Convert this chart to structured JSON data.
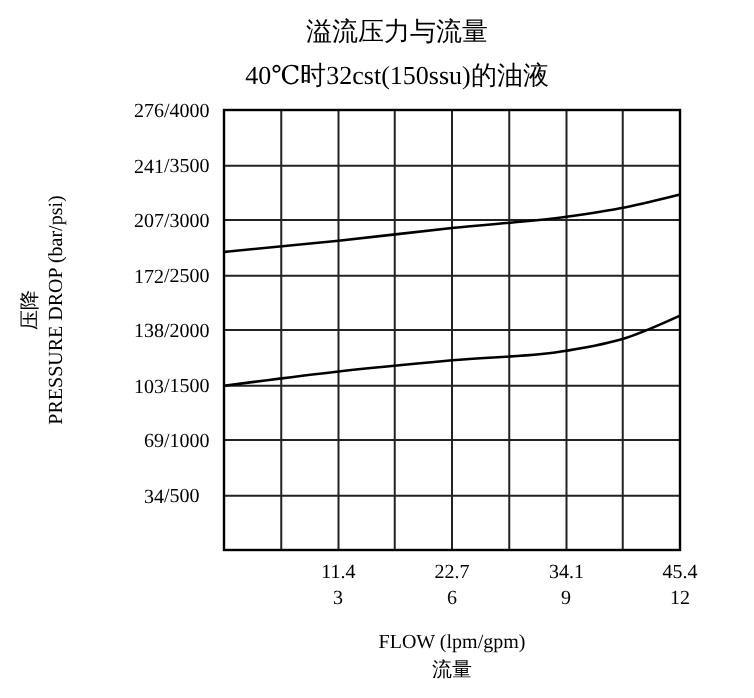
{
  "chart_data": {
    "type": "line",
    "title": "溢流压力与流量",
    "subtitle": "40℃时32cst(150ssu)的油液",
    "xlabel": "FLOW (lpm/gpm)\n流量",
    "ylabel": "压降\nPRESSURE DROP (bar/psi)",
    "xlim": [
      0,
      45.4
    ],
    "ylim": [
      0,
      276
    ],
    "x2lim": [
      0,
      12
    ],
    "y2lim": [
      0,
      4000
    ],
    "xticks": [
      {
        "value": 5.7,
        "label": null
      },
      11.4,
      {
        "value": 17.0,
        "label": null
      },
      22.7,
      {
        "value": 28.4,
        "label": null
      },
      34.1,
      {
        "value": 39.7,
        "label": null
      },
      45.4
    ],
    "x2ticks": [
      3,
      6,
      9,
      12
    ],
    "yticks": [
      34,
      69,
      103,
      138,
      172,
      207,
      241,
      276
    ],
    "y2ticks": [
      {
        "value": 500,
        "label": "/500"
      },
      {
        "value": 1000,
        "label": "/1000"
      },
      {
        "value": 1500,
        "label": "/1500"
      },
      {
        "value": 2000,
        "label": "/2000"
      },
      {
        "value": 2500,
        "label": "/2500"
      },
      {
        "value": 3000,
        "label": "/3000"
      },
      {
        "value": 3500,
        "label": "/3500"
      },
      {
        "value": 4000,
        "label": "/4000"
      }
    ],
    "grid": true,
    "marker": "none",
    "line_style": "solid",
    "series": [
      {
        "color": "#000000",
        "x": [
          0,
          11.4,
          22.7,
          34.1,
          40,
          45.4
        ],
        "values": [
          187,
          194,
          202,
          209,
          215,
          223
        ]
      },
      {
        "color": "#000000",
        "x": [
          0,
          11.4,
          22.7,
          34.1,
          40,
          45.4
        ],
        "values": [
          103,
          112,
          119,
          125,
          133,
          147
        ]
      }
    ]
  }
}
